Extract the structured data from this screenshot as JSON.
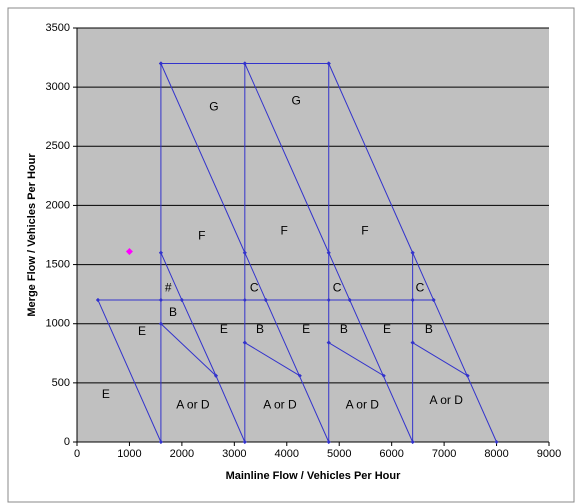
{
  "chart_data": {
    "type": "line",
    "xlabel": "Mainline Flow / Vehicles Per Hour",
    "ylabel": "Merge Flow / Vehicles Per Hour",
    "xlim": [
      0,
      9000
    ],
    "ylim": [
      0,
      3500
    ],
    "xticks": [
      0,
      1000,
      2000,
      3000,
      4000,
      5000,
      6000,
      7000,
      8000,
      9000
    ],
    "yticks": [
      0,
      500,
      1000,
      1500,
      2000,
      2500,
      3000,
      3500
    ],
    "grid": true,
    "plot_background": "#c0c0c0",
    "series": [
      {
        "color": "#3333cc",
        "x": [
          400,
          1600,
          2000,
          3200,
          3600,
          4800,
          5200,
          6400,
          6800,
          null,
          1600,
          3200,
          4800,
          null,
          1600,
          1600,
          1600,
          1600,
          1600,
          null,
          3200,
          3200,
          3200,
          3200,
          null,
          4800,
          4800,
          4800,
          4800,
          null,
          6400,
          6400,
          6400,
          6400,
          null,
          1600,
          3200,
          3600,
          4800,
          null,
          3200,
          4800,
          5200,
          6400,
          null,
          4800,
          6400,
          6800,
          8000,
          null,
          400,
          1600,
          null,
          1600,
          2000,
          2650,
          3200,
          null,
          1600,
          2650,
          null,
          3200,
          4250,
          null,
          4800,
          5850,
          null,
          6400,
          7450
        ],
        "y": [
          1200,
          1200,
          1200,
          1200,
          1200,
          1200,
          1200,
          1200,
          1200,
          null,
          3200,
          3200,
          3200,
          null,
          0,
          1000,
          1200,
          1600,
          3200,
          null,
          0,
          840,
          1600,
          3200,
          null,
          0,
          840,
          1600,
          3200,
          null,
          0,
          840,
          1200,
          1600,
          null,
          3200,
          1600,
          1200,
          0,
          null,
          3200,
          1600,
          1200,
          0,
          null,
          3200,
          1600,
          1200,
          0,
          null,
          1200,
          0,
          null,
          1600,
          1200,
          560,
          0,
          null,
          1000,
          560,
          null,
          840,
          560,
          null,
          840,
          560,
          null,
          840,
          560
        ]
      },
      {
        "color": "#ff00ff",
        "x": [
          1000
        ],
        "y": [
          1610
        ]
      }
    ],
    "annotations": [
      {
        "text": "G",
        "x": 2610,
        "y": 2830
      },
      {
        "text": "G",
        "x": 4180,
        "y": 2880
      },
      {
        "text": "F",
        "x": 2380,
        "y": 1740
      },
      {
        "text": "F",
        "x": 3950,
        "y": 1780
      },
      {
        "text": "F",
        "x": 5490,
        "y": 1780
      },
      {
        "text": "#",
        "x": 1740,
        "y": 1300
      },
      {
        "text": "C",
        "x": 3380,
        "y": 1300
      },
      {
        "text": "C",
        "x": 4960,
        "y": 1300
      },
      {
        "text": "C",
        "x": 6540,
        "y": 1300
      },
      {
        "text": "B",
        "x": 1830,
        "y": 1090
      },
      {
        "text": "B",
        "x": 3490,
        "y": 950
      },
      {
        "text": "B",
        "x": 5090,
        "y": 950
      },
      {
        "text": "B",
        "x": 6710,
        "y": 950
      },
      {
        "text": "E",
        "x": 1240,
        "y": 930
      },
      {
        "text": "E",
        "x": 2800,
        "y": 950
      },
      {
        "text": "E",
        "x": 4370,
        "y": 950
      },
      {
        "text": "E",
        "x": 5910,
        "y": 950
      },
      {
        "text": "E",
        "x": 550,
        "y": 400
      },
      {
        "text": "A or D",
        "x": 2210,
        "y": 310
      },
      {
        "text": "A or D",
        "x": 3870,
        "y": 310
      },
      {
        "text": "A or D",
        "x": 5440,
        "y": 310
      },
      {
        "text": "A or D",
        "x": 7040,
        "y": 350
      }
    ]
  }
}
